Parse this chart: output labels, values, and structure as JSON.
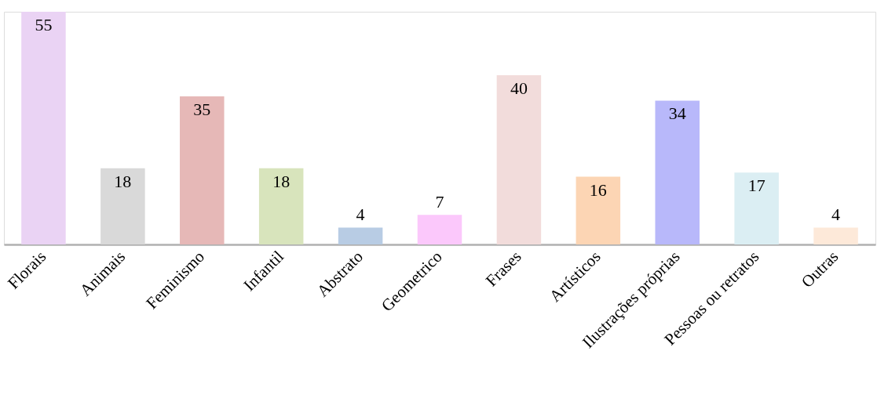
{
  "chart_data": {
    "type": "bar",
    "categories": [
      "Florais",
      "Animais",
      "Feminismo",
      "Infantil",
      "Abstrato",
      "Geometrico",
      "Frases",
      "Artísticos",
      "Ilustrações próprias",
      "Pessoas ou retratos",
      "Outras"
    ],
    "values": [
      55,
      18,
      35,
      18,
      4,
      7,
      40,
      16,
      34,
      17,
      4
    ],
    "colors": [
      "#ead3f4",
      "#d9d9d9",
      "#e6b8b7",
      "#d8e4bc",
      "#b8cce4",
      "#fbc8fb",
      "#f2dcdb",
      "#fcd5b4",
      "#b8b8fa",
      "#dbeef3",
      "#fde9d9"
    ],
    "data_labels": true,
    "grid": false
  }
}
